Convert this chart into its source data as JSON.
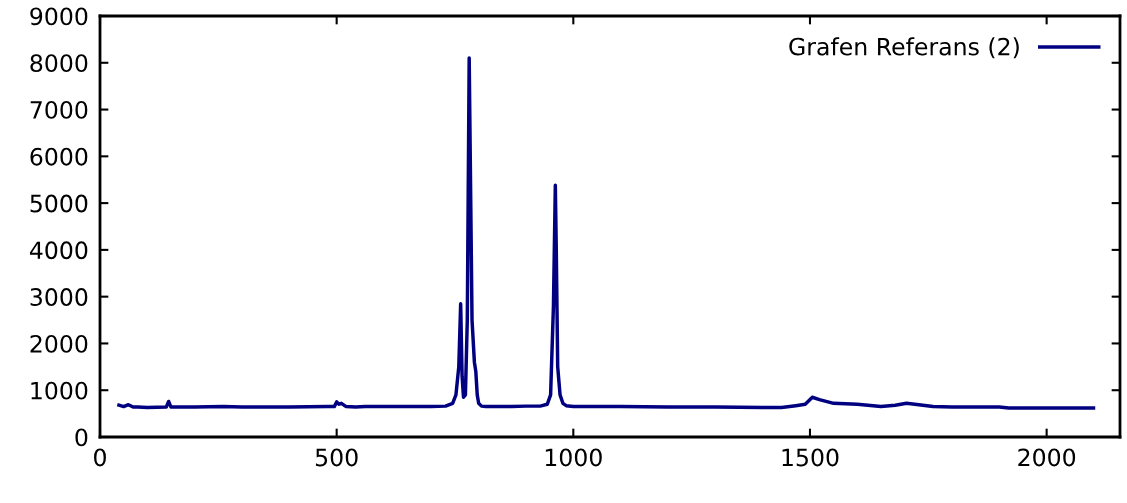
{
  "chart_data": {
    "type": "line",
    "xlim": [
      0,
      2155
    ],
    "ylim": [
      0,
      9000
    ],
    "xticks": [
      0,
      500,
      1000,
      1500,
      2000
    ],
    "yticks": [
      0,
      1000,
      2000,
      3000,
      4000,
      5000,
      6000,
      7000,
      8000,
      9000
    ],
    "grid": false,
    "legend": "top right",
    "marker": "none",
    "line_style": "solid",
    "series": [
      {
        "name": "Grafen Referans (2)",
        "color": "#000080",
        "x": [
          40,
          50,
          60,
          70,
          80,
          100,
          140,
          145,
          150,
          160,
          200,
          260,
          300,
          330,
          360,
          400,
          480,
          495,
          500,
          505,
          510,
          520,
          540,
          560,
          600,
          700,
          730,
          745,
          752,
          758,
          762,
          765,
          768,
          772,
          776,
          780,
          786,
          791,
          794,
          797,
          800,
          806,
          815,
          830,
          870,
          900,
          930,
          945,
          952,
          958,
          962,
          964,
          967,
          972,
          978,
          985,
          1000,
          1050,
          1100,
          1200,
          1300,
          1400,
          1440,
          1470,
          1490,
          1505,
          1520,
          1550,
          1600,
          1650,
          1680,
          1704,
          1730,
          1760,
          1800,
          1900,
          1920,
          2000,
          2099
        ],
        "values": [
          680,
          650,
          690,
          640,
          640,
          630,
          640,
          760,
          640,
          640,
          640,
          650,
          640,
          640,
          640,
          640,
          650,
          650,
          750,
          700,
          720,
          650,
          640,
          650,
          650,
          650,
          660,
          720,
          900,
          1500,
          2850,
          1300,
          850,
          900,
          2500,
          8100,
          2500,
          1600,
          1400,
          900,
          720,
          660,
          650,
          650,
          650,
          660,
          660,
          700,
          900,
          2800,
          5380,
          4000,
          1500,
          900,
          720,
          670,
          650,
          650,
          650,
          640,
          640,
          630,
          630,
          670,
          700,
          850,
          800,
          720,
          700,
          650,
          680,
          720,
          690,
          650,
          640,
          640,
          620,
          620,
          620
        ]
      }
    ]
  }
}
